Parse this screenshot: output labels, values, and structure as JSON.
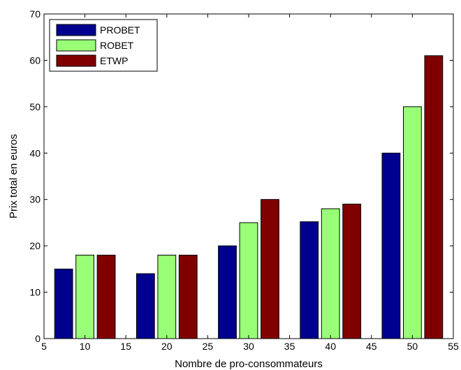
{
  "chart_data": {
    "type": "bar",
    "title": "",
    "xlabel": "Nombre de pro-consommateurs",
    "ylabel": "Prix total en euros",
    "xlim": [
      5,
      55
    ],
    "ylim": [
      0,
      70
    ],
    "x_ticks": [
      "5",
      "10",
      "15",
      "20",
      "25",
      "30",
      "35",
      "40",
      "45",
      "50",
      "55"
    ],
    "y_ticks": [
      "0",
      "10",
      "20",
      "30",
      "40",
      "50",
      "60",
      "70"
    ],
    "categories": [
      10,
      20,
      30,
      40,
      50
    ],
    "series": [
      {
        "name": "PROBET",
        "color": "#00008f",
        "values": [
          15,
          14,
          20,
          25.2,
          40
        ]
      },
      {
        "name": "ROBET",
        "color": "#99ff77",
        "values": [
          18,
          18,
          25,
          28,
          50
        ]
      },
      {
        "name": "ETWP",
        "color": "#800000",
        "values": [
          18,
          18,
          30,
          29,
          61
        ]
      }
    ],
    "grid": false,
    "legend_position": "top-left"
  }
}
